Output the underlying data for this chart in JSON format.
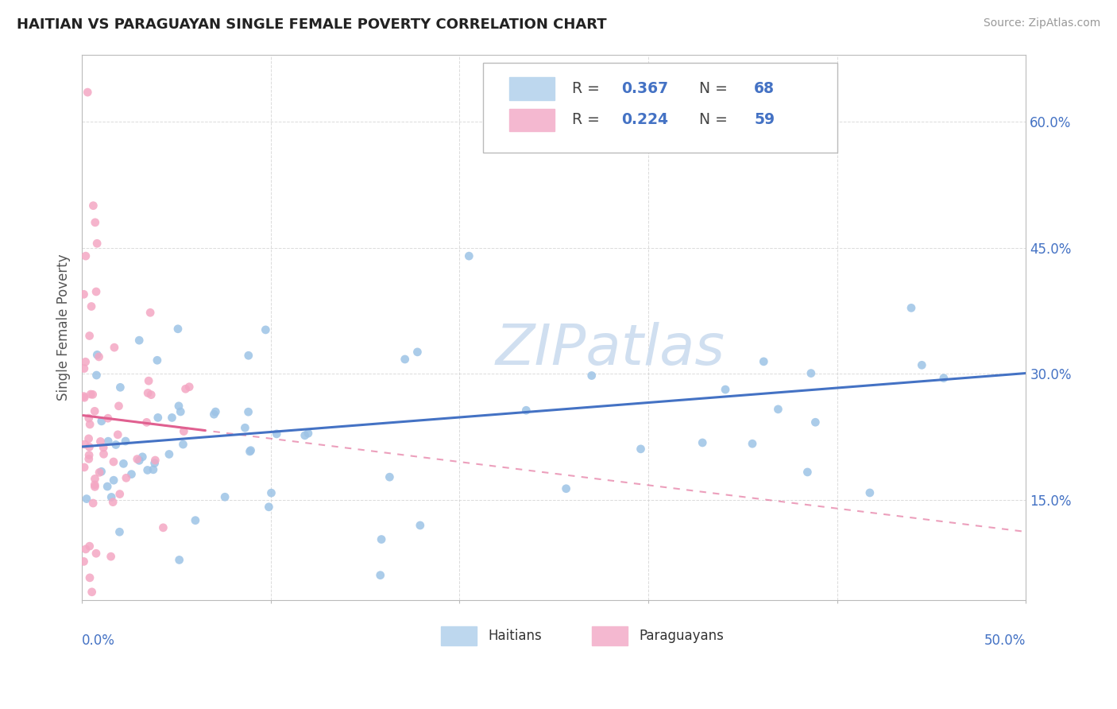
{
  "title": "HAITIAN VS PARAGUAYAN SINGLE FEMALE POVERTY CORRELATION CHART",
  "source_text": "Source: ZipAtlas.com",
  "ylabel": "Single Female Poverty",
  "yticks": [
    "15.0%",
    "30.0%",
    "45.0%",
    "60.0%"
  ],
  "ytick_vals": [
    0.15,
    0.3,
    0.45,
    0.6
  ],
  "xlim": [
    0.0,
    0.5
  ],
  "ylim": [
    0.03,
    0.68
  ],
  "haitians_R": 0.367,
  "haitians_N": 68,
  "paraguayans_R": 0.224,
  "paraguayans_N": 59,
  "blue_line_color": "#4472c4",
  "blue_scatter_color": "#9dc3e6",
  "pink_line_color": "#e06090",
  "pink_scatter_color": "#f4a7c3",
  "watermark": "ZIPatlas",
  "watermark_color": "#d0dff0",
  "legend_blue_fill": "#bdd7ee",
  "legend_pink_fill": "#f4b8d0",
  "legend_edge_color": "#bbbbbb",
  "legend_R_color": "#4472c4",
  "legend_N_color": "#4472c4",
  "grid_color": "#cccccc",
  "spine_color": "#bbbbbb",
  "title_color": "#222222",
  "source_color": "#999999",
  "axis_label_color": "#555555",
  "tick_color": "#4472c4"
}
